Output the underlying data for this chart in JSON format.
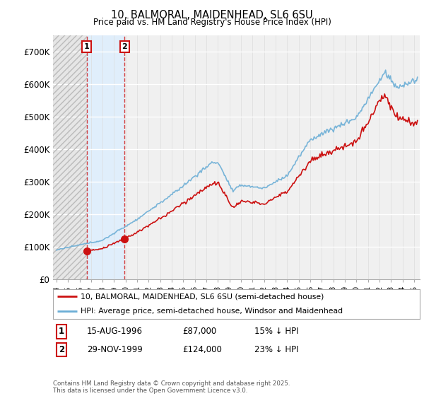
{
  "title_line1": "10, BALMORAL, MAIDENHEAD, SL6 6SU",
  "title_line2": "Price paid vs. HM Land Registry's House Price Index (HPI)",
  "ylim": [
    0,
    750000
  ],
  "yticks": [
    0,
    100000,
    200000,
    300000,
    400000,
    500000,
    600000,
    700000
  ],
  "ytick_labels": [
    "£0",
    "£100K",
    "£200K",
    "£300K",
    "£400K",
    "£500K",
    "£600K",
    "£700K"
  ],
  "xlim_start": 1993.7,
  "xlim_end": 2025.5,
  "xticks": [
    1994,
    1995,
    1996,
    1997,
    1998,
    1999,
    2000,
    2001,
    2002,
    2003,
    2004,
    2005,
    2006,
    2007,
    2008,
    2009,
    2010,
    2011,
    2012,
    2013,
    2014,
    2015,
    2016,
    2017,
    2018,
    2019,
    2020,
    2021,
    2022,
    2023,
    2024,
    2025
  ],
  "hpi_color": "#6baed6",
  "price_color": "#cc1111",
  "transaction1_date": 1996.62,
  "transaction1_price": 87000,
  "transaction1_label": "1",
  "transaction1_year_label": "15-AUG-1996",
  "transaction1_price_label": "£87,000",
  "transaction1_hpi_label": "15% ↓ HPI",
  "transaction2_date": 1999.91,
  "transaction2_price": 124000,
  "transaction2_label": "2",
  "transaction2_year_label": "29-NOV-1999",
  "transaction2_price_label": "£124,000",
  "transaction2_hpi_label": "23% ↓ HPI",
  "legend_line1": "10, BALMORAL, MAIDENHEAD, SL6 6SU (semi-detached house)",
  "legend_line2": "HPI: Average price, semi-detached house, Windsor and Maidenhead",
  "footer": "Contains HM Land Registry data © Crown copyright and database right 2025.\nThis data is licensed under the Open Government Licence v3.0.",
  "hatch_region_end": 1996.62,
  "shaded_region_start": 1996.62,
  "shaded_region_end": 1999.91,
  "background_color": "#ffffff",
  "plot_bg_color": "#f0f0f0"
}
